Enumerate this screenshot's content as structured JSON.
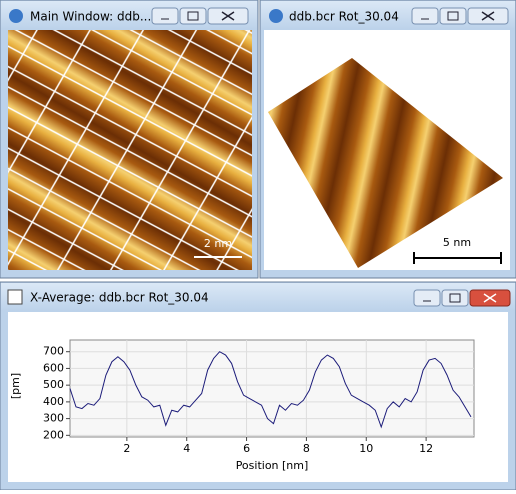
{
  "windows": [
    {
      "title": "Main Window: ddb....",
      "scale_bar": "2 nm"
    },
    {
      "title": "ddb.bcr Rot_30.04",
      "scale_bar": "5 nm"
    },
    {
      "title": "X-Average: ddb.bcr Rot_30.04"
    }
  ],
  "chart_data": {
    "type": "line",
    "xlabel": "Position [nm]",
    "ylabel": "[pm]",
    "color": "#1c1c7a",
    "x": [
      0.1,
      0.3,
      0.5,
      0.7,
      0.9,
      1.1,
      1.3,
      1.5,
      1.7,
      1.9,
      2.1,
      2.3,
      2.5,
      2.7,
      2.9,
      3.1,
      3.3,
      3.5,
      3.7,
      3.9,
      4.1,
      4.3,
      4.5,
      4.7,
      4.9,
      5.1,
      5.3,
      5.5,
      5.7,
      5.9,
      6.1,
      6.3,
      6.5,
      6.7,
      6.9,
      7.1,
      7.3,
      7.5,
      7.7,
      7.9,
      8.1,
      8.3,
      8.5,
      8.7,
      8.9,
      9.1,
      9.3,
      9.5,
      9.7,
      9.9,
      10.1,
      10.3,
      10.5,
      10.7,
      10.9,
      11.1,
      11.3,
      11.5,
      11.7,
      11.9,
      12.1,
      12.3,
      12.5,
      12.7,
      12.9,
      13.1,
      13.3,
      13.5
    ],
    "values": [
      480,
      370,
      360,
      390,
      380,
      420,
      560,
      640,
      670,
      640,
      590,
      500,
      430,
      410,
      370,
      380,
      260,
      350,
      340,
      380,
      370,
      410,
      450,
      590,
      660,
      700,
      680,
      630,
      520,
      440,
      420,
      400,
      380,
      300,
      270,
      380,
      350,
      390,
      380,
      410,
      470,
      580,
      650,
      680,
      660,
      610,
      510,
      440,
      420,
      400,
      380,
      350,
      250,
      360,
      400,
      370,
      420,
      400,
      460,
      590,
      650,
      660,
      630,
      560,
      470,
      430,
      370,
      310
    ],
    "xlim": [
      0.1,
      13.6
    ],
    "ylim": [
      190,
      770
    ],
    "xticks": [
      2,
      4,
      6,
      8,
      10,
      12
    ],
    "yticks": [
      200,
      300,
      400,
      500,
      600,
      700
    ],
    "grid": true
  }
}
